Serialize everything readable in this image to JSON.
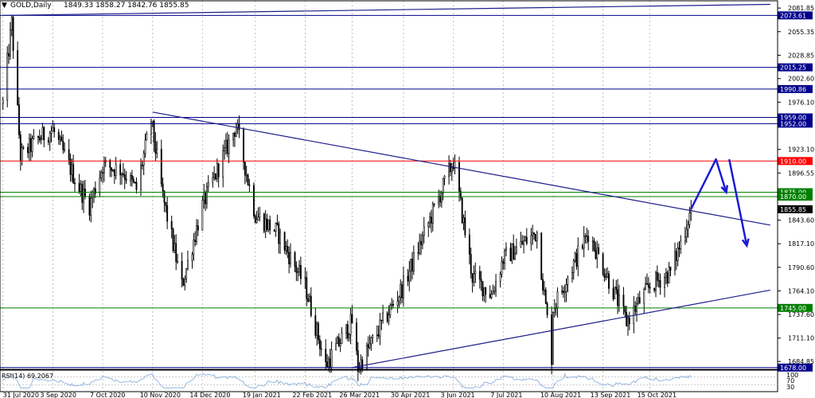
{
  "header": {
    "symbol": "GOLD,Daily",
    "ohlc": "1849.33 1858.27 1842.76 1855.85"
  },
  "rsi": {
    "label": "RSI(14) 69.2067",
    "scale_top": "100",
    "scale_mid": "70",
    "scale_bottom": "30",
    "value": 69.2067
  },
  "colors": {
    "blue_level": "#00008b",
    "red_level": "#ff0000",
    "green_level": "#008000",
    "trendline": "#1c1c8a",
    "arrow": "#1a1ad4",
    "candle": "#000000",
    "grid": "#c0c0c0"
  },
  "chart_data": {
    "type": "candlestick",
    "symbol": "GOLD",
    "timeframe": "Daily",
    "last_close": 1855.85,
    "ylim": [
      1676,
      2090
    ],
    "y_ticks": [
      "2081.85",
      "2055.35",
      "2028.85",
      "2002.60",
      "1976.10",
      "1923.10",
      "1896.55",
      "1843.60",
      "1817.10",
      "1790.60",
      "1764.10",
      "1737.60",
      "1711.10",
      "1684.85"
    ],
    "x_ticks": [
      "31 Jul 2020",
      "3 Sep 2020",
      "7 Oct 2020",
      "10 Nov 2020",
      "14 Dec 2020",
      "19 Jan 2021",
      "22 Feb 2021",
      "26 Mar 2021",
      "30 Apr 2021",
      "3 Jun 2021",
      "7 Jul 2021",
      "10 Aug 2021",
      "13 Sep 2021",
      "15 Oct 2021"
    ],
    "price_path": [
      [
        "31 Jul 2020",
        1975
      ],
      [
        "6 Aug 2020",
        2065
      ],
      [
        "12 Aug 2020",
        1915
      ],
      [
        "24 Aug 2020",
        1935
      ],
      [
        "3 Sep 2020",
        1945
      ],
      [
        "21 Sep 2020",
        1880
      ],
      [
        "28 Sep 2020",
        1860
      ],
      [
        "7 Oct 2020",
        1905
      ],
      [
        "20 Oct 2020",
        1900
      ],
      [
        "30 Oct 2020",
        1878
      ],
      [
        "9 Nov 2020",
        1955
      ],
      [
        "17 Nov 2020",
        1870
      ],
      [
        "30 Nov 2020",
        1770
      ],
      [
        "14 Dec 2020",
        1860
      ],
      [
        "6 Jan 2021",
        1950
      ],
      [
        "19 Jan 2021",
        1850
      ],
      [
        "3 Feb 2021",
        1830
      ],
      [
        "22 Feb 2021",
        1770
      ],
      [
        "8 Mar 2021",
        1680
      ],
      [
        "26 Mar 2021",
        1730
      ],
      [
        "30 Mar 2021",
        1678
      ],
      [
        "30 Apr 2021",
        1770
      ],
      [
        "3 Jun 2021",
        1910
      ],
      [
        "16 Jun 2021",
        1780
      ],
      [
        "29 Jun 2021",
        1760
      ],
      [
        "7 Jul 2021",
        1800
      ],
      [
        "30 Jul 2021",
        1830
      ],
      [
        "9 Aug 2021",
        1690
      ],
      [
        "10 Aug 2021",
        1745
      ],
      [
        "3 Sep 2021",
        1830
      ],
      [
        "29 Sep 2021",
        1730
      ],
      [
        "15 Oct 2021",
        1770
      ],
      [
        "29 Oct 2021",
        1785
      ],
      [
        "5 Nov 2021",
        1818
      ],
      [
        "12 Nov 2021",
        1856
      ]
    ],
    "levels": [
      {
        "value": 2073.61,
        "label": "2073.61",
        "color": "#00008b"
      },
      {
        "value": 2015.25,
        "label": "2015.25",
        "color": "#00008b"
      },
      {
        "value": 1990.86,
        "label": "1990.86",
        "color": "#00008b"
      },
      {
        "value": 1959.0,
        "label": "1959.00",
        "color": "#00008b"
      },
      {
        "value": 1952.0,
        "label": "1952.00",
        "color": "#00008b"
      },
      {
        "value": 1910.0,
        "label": "1910.00",
        "color": "#ff0000"
      },
      {
        "value": 1875.0,
        "label": "1875.00",
        "color": "#008000"
      },
      {
        "value": 1870.0,
        "label": "1870.00",
        "color": "#008000"
      },
      {
        "value": 1855.85,
        "label": "1855.85",
        "color": "#000000"
      },
      {
        "value": 1745.0,
        "label": "1745.00",
        "color": "#008000"
      },
      {
        "value": 1678.0,
        "label": "1678.00",
        "color": "#00008b"
      }
    ],
    "trendlines": [
      {
        "from": [
          "31 Jul 2020",
          2073.6
        ],
        "to": [
          "5 Jan 2022",
          2086
        ],
        "color": "#1c1c8a"
      },
      {
        "from": [
          "10 Nov 2020",
          1965
        ],
        "to": [
          "5 Jan 2022",
          1838
        ],
        "color": "#1c1c8a"
      },
      {
        "from": [
          "26 Mar 2021",
          1678
        ],
        "to": [
          "5 Jan 2022",
          1765
        ],
        "color": "#1c1c8a"
      }
    ],
    "projection_arrows": [
      {
        "path": [
          [
            "12 Nov 2021",
            1856
          ],
          [
            "29 Nov 2021",
            1912
          ],
          [
            "6 Dec 2021",
            1875
          ]
        ],
        "color": "#1a1ad4"
      },
      {
        "path": [
          [
            "8 Dec 2021",
            1912
          ],
          [
            "20 Dec 2021",
            1815
          ]
        ],
        "color": "#1a1ad4"
      }
    ],
    "grid": true
  }
}
